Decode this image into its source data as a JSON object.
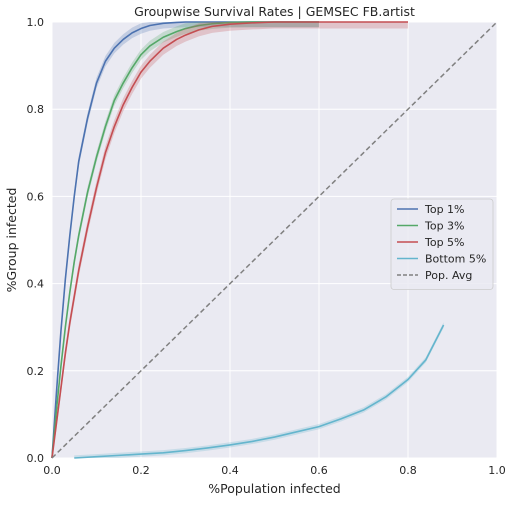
{
  "chart_data": {
    "type": "line",
    "title": "Groupwise Survival Rates | GEMSEC FB.artist",
    "xlabel": "%Population infected",
    "ylabel": "%Group infected",
    "xlim": [
      0,
      1
    ],
    "ylim": [
      0,
      1
    ],
    "grid": true,
    "legend_position": "center-right",
    "xticks": [
      0,
      0.2,
      0.4,
      0.6,
      0.8,
      1.0
    ],
    "xtick_labels": [
      "0.0",
      "0.2",
      "0.4",
      "0.6",
      "0.8",
      "1.0"
    ],
    "yticks": [
      0,
      0.2,
      0.4,
      0.6,
      0.8,
      1.0
    ],
    "ytick_labels": [
      "0.0",
      "0.2",
      "0.4",
      "0.6",
      "0.8",
      "1.0"
    ],
    "background_color": "#eaeaf2",
    "grid_color": "#ffffff",
    "series": [
      {
        "name": "Top 1%",
        "color": "#4c72b0",
        "dashed": false,
        "band": 0.012,
        "x": [
          0,
          0.01,
          0.02,
          0.03,
          0.04,
          0.05,
          0.06,
          0.07,
          0.08,
          0.09,
          0.1,
          0.12,
          0.14,
          0.16,
          0.18,
          0.2,
          0.22,
          0.25,
          0.28,
          0.3,
          0.35,
          0.4,
          0.5,
          0.6
        ],
        "y": [
          0,
          0.15,
          0.29,
          0.41,
          0.51,
          0.6,
          0.68,
          0.73,
          0.78,
          0.82,
          0.86,
          0.91,
          0.94,
          0.96,
          0.975,
          0.985,
          0.992,
          0.997,
          0.999,
          1.0,
          1.0,
          1.0,
          1.0,
          1.0
        ]
      },
      {
        "name": "Top 3%",
        "color": "#55a868",
        "dashed": false,
        "band": 0.012,
        "x": [
          0,
          0.01,
          0.02,
          0.03,
          0.04,
          0.05,
          0.06,
          0.07,
          0.08,
          0.1,
          0.12,
          0.14,
          0.16,
          0.18,
          0.2,
          0.22,
          0.25,
          0.28,
          0.3,
          0.33,
          0.36,
          0.4,
          0.45,
          0.5,
          0.6
        ],
        "y": [
          0,
          0.11,
          0.21,
          0.3,
          0.38,
          0.45,
          0.51,
          0.56,
          0.61,
          0.69,
          0.76,
          0.82,
          0.86,
          0.895,
          0.925,
          0.945,
          0.965,
          0.978,
          0.985,
          0.992,
          0.996,
          0.999,
          1.0,
          1.0,
          1.0
        ]
      },
      {
        "name": "Top 5%",
        "color": "#c44e52",
        "dashed": false,
        "band": 0.015,
        "x": [
          0,
          0.01,
          0.02,
          0.03,
          0.04,
          0.05,
          0.06,
          0.07,
          0.08,
          0.1,
          0.12,
          0.14,
          0.16,
          0.18,
          0.2,
          0.22,
          0.25,
          0.28,
          0.3,
          0.33,
          0.36,
          0.4,
          0.45,
          0.5,
          0.6,
          0.8
        ],
        "y": [
          0,
          0.08,
          0.16,
          0.24,
          0.31,
          0.37,
          0.43,
          0.48,
          0.53,
          0.62,
          0.7,
          0.76,
          0.81,
          0.85,
          0.885,
          0.91,
          0.94,
          0.96,
          0.97,
          0.982,
          0.99,
          0.995,
          0.998,
          1.0,
          1.0,
          1.0
        ]
      },
      {
        "name": "Bottom 5%",
        "color": "#64b5cd",
        "dashed": false,
        "band": 0.006,
        "x": [
          0.05,
          0.1,
          0.15,
          0.2,
          0.25,
          0.3,
          0.35,
          0.4,
          0.45,
          0.5,
          0.55,
          0.6,
          0.65,
          0.7,
          0.75,
          0.8,
          0.84,
          0.88
        ],
        "y": [
          0.0,
          0.003,
          0.006,
          0.009,
          0.012,
          0.017,
          0.023,
          0.03,
          0.038,
          0.048,
          0.06,
          0.072,
          0.09,
          0.11,
          0.14,
          0.18,
          0.225,
          0.305
        ]
      },
      {
        "name": "Pop. Avg",
        "color": "#808080",
        "dashed": true,
        "band": 0,
        "x": [
          0,
          1
        ],
        "y": [
          0,
          1
        ]
      }
    ]
  }
}
